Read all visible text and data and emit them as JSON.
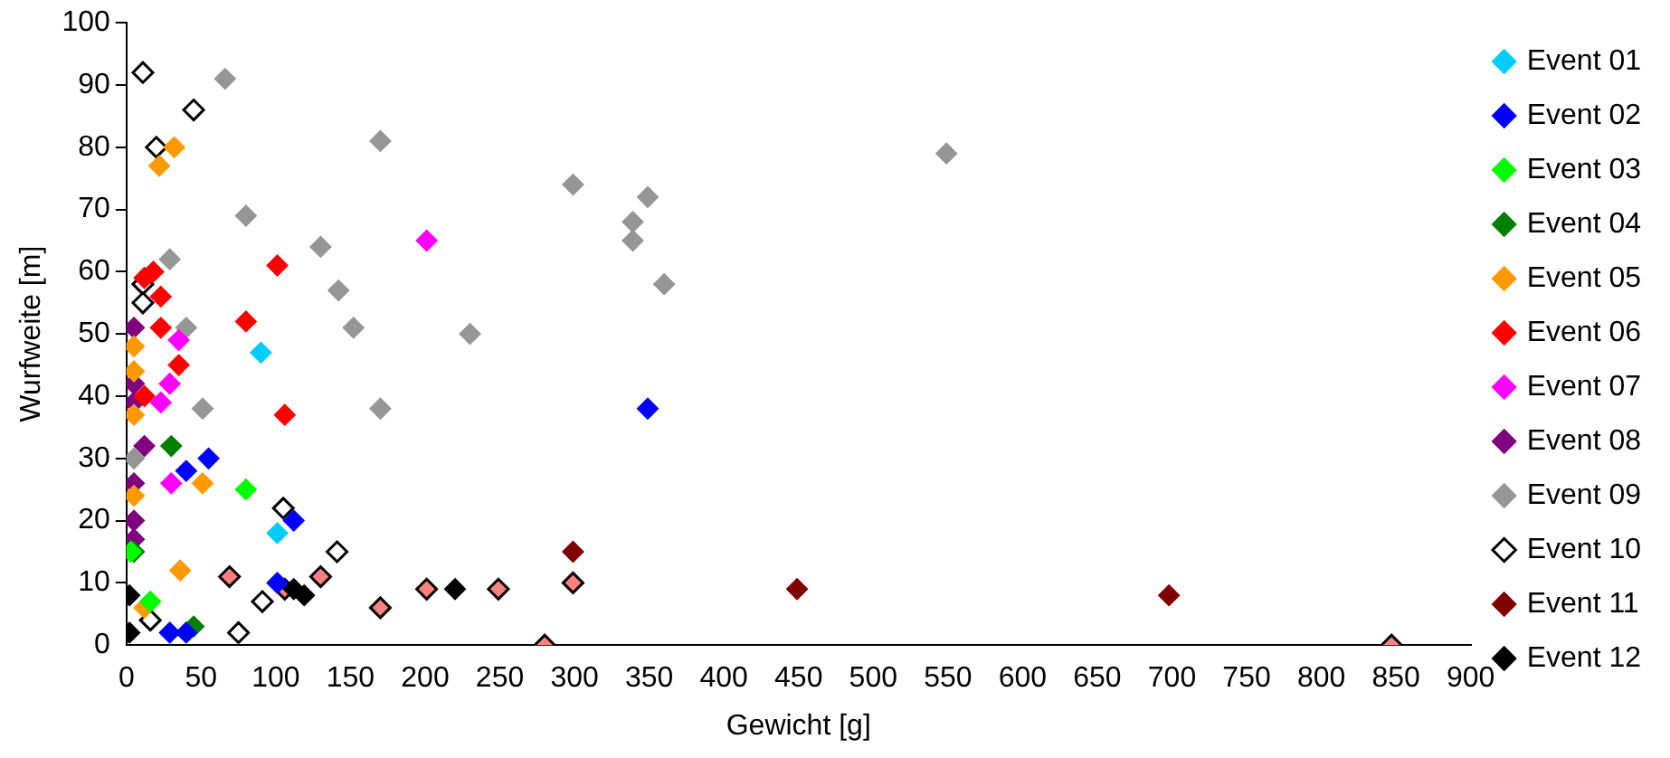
{
  "chart_data": {
    "type": "scatter",
    "xlabel": "Gewicht [g]",
    "ylabel": "Wurfweite [m]",
    "xlim": [
      0,
      900
    ],
    "xticks": [
      0,
      50,
      100,
      150,
      200,
      250,
      300,
      350,
      400,
      450,
      500,
      550,
      600,
      650,
      700,
      750,
      800,
      850,
      900
    ],
    "ylim": [
      0,
      100
    ],
    "yticks": [
      0,
      10,
      20,
      30,
      40,
      50,
      60,
      70,
      80,
      90,
      100
    ],
    "grid": false,
    "legend": "right",
    "marker": "diamond",
    "series": [
      {
        "name": "Event 01",
        "color": "#00ccff",
        "x": [
          90,
          101
        ],
        "values": [
          47,
          18
        ]
      },
      {
        "name": "Event 02",
        "color": "#0000ff",
        "x": [
          55,
          40,
          112,
          101,
          29,
          40,
          349
        ],
        "values": [
          30,
          28,
          20,
          10,
          2,
          2,
          38
        ]
      },
      {
        "name": "Event 03",
        "color": "#00ff00",
        "x": [
          80,
          16,
          3
        ],
        "values": [
          25,
          7,
          15
        ]
      },
      {
        "name": "Event 04",
        "color": "#008000",
        "x": [
          30,
          45,
          5
        ],
        "values": [
          32,
          3,
          15
        ]
      },
      {
        "name": "Event 05",
        "color": "#ff9900",
        "x": [
          32,
          22,
          51,
          36,
          5,
          5,
          5,
          5,
          12
        ],
        "values": [
          80,
          77,
          26,
          12,
          48,
          44,
          37,
          24,
          6
        ]
      },
      {
        "name": "Event 06",
        "color": "#ff0000",
        "x": [
          18,
          12,
          23,
          23,
          101,
          80,
          35,
          106,
          12
        ],
        "values": [
          60,
          59,
          56,
          51,
          61,
          52,
          45,
          37,
          40
        ]
      },
      {
        "name": "Event 07",
        "color": "#ff00ff",
        "x": [
          201,
          35,
          29,
          23,
          30
        ],
        "values": [
          65,
          49,
          42,
          39,
          26
        ]
      },
      {
        "name": "Event 08",
        "color": "#800080",
        "x": [
          5,
          5,
          5,
          12,
          5,
          5,
          5
        ],
        "values": [
          51,
          42,
          39,
          32,
          26,
          20,
          17
        ]
      },
      {
        "name": "Event 09",
        "color": "#969696",
        "x": [
          66,
          170,
          80,
          29,
          130,
          142,
          152,
          40,
          51,
          170,
          5,
          299,
          349,
          339,
          339,
          360,
          230,
          549
        ],
        "values": [
          91,
          81,
          69,
          62,
          64,
          57,
          51,
          51,
          38,
          38,
          30,
          74,
          72,
          68,
          65,
          58,
          50,
          79
        ]
      },
      {
        "name": "Event 10",
        "color": "#ffffff",
        "x": [
          11,
          45,
          20,
          11,
          11,
          105,
          141,
          91,
          75,
          16
        ],
        "values": [
          92,
          86,
          80,
          58,
          55,
          22,
          15,
          7,
          2,
          4
        ]
      },
      {
        "name": "Event 11",
        "color": "#800000",
        "x": [
          299,
          449,
          698
        ],
        "values": [
          15,
          9,
          8
        ]
      },
      {
        "name": "Event 12",
        "color": "#000000",
        "x": [
          2,
          2,
          119,
          112,
          220
        ],
        "values": [
          8,
          2,
          8,
          9,
          9
        ]
      },
      {
        "color": "#ff8080",
        "x": [
          69,
          106,
          130,
          170,
          201,
          249,
          299,
          280,
          847
        ],
        "values": [
          11,
          9,
          11,
          6,
          9,
          9,
          10,
          0,
          0
        ]
      }
    ]
  }
}
